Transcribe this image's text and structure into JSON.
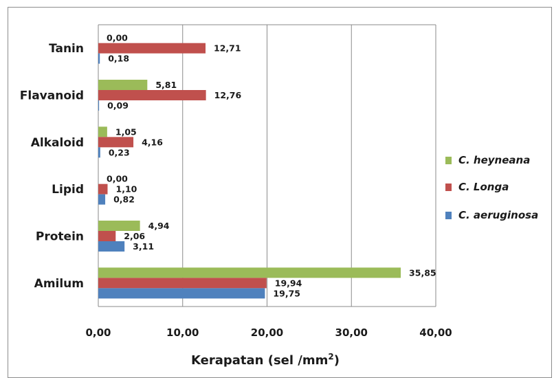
{
  "chart_data": {
    "type": "bar",
    "orientation": "horizontal",
    "categories": [
      "Amilum",
      "Protein",
      "Lipid",
      "Alkaloid",
      "Flavanoid",
      "Tanin"
    ],
    "series": [
      {
        "name": "C. aeruginosa",
        "color": "#4f81bd",
        "values": [
          19.75,
          3.11,
          0.82,
          0.23,
          0.09,
          0.18
        ],
        "labels": [
          "19,75",
          "3,11",
          "0,82",
          "0,23",
          "0,09",
          "0,18"
        ]
      },
      {
        "name": "C. Longa",
        "color": "#c0504d",
        "values": [
          19.94,
          2.06,
          1.1,
          4.16,
          12.76,
          12.71
        ],
        "labels": [
          "19,94",
          "2,06",
          "1,10",
          "4,16",
          "12,76",
          "12,71"
        ]
      },
      {
        "name": "C. heyneana",
        "color": "#9bbb59",
        "values": [
          35.85,
          4.94,
          0.0,
          1.05,
          5.81,
          0.0
        ],
        "labels": [
          "35,85",
          "4,94",
          "0,00",
          "1,05",
          "5,81",
          "0,00"
        ]
      }
    ],
    "xlim": [
      0,
      40
    ],
    "xticks": [
      "0,00",
      "10,00",
      "20,00",
      "30,00",
      "40,00"
    ],
    "xlabel": "Kerapatan (sel /mm",
    "xlabel_sup": "2",
    "xlabel_end": ")",
    "grid": "vertical",
    "legend_position": "right",
    "legend_order": [
      "C. heyneana",
      "C. Longa",
      "C. aeruginosa"
    ]
  }
}
